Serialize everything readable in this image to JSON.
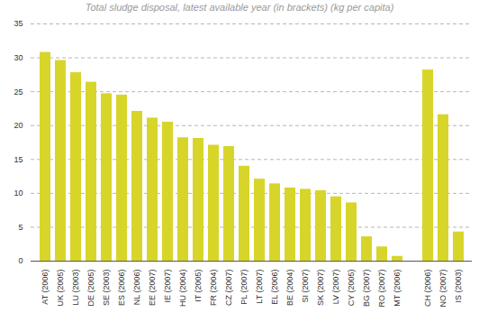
{
  "chart_data": {
    "type": "bar",
    "title": "Total sludge disposal, latest available year (in brackets) (kg per capita)",
    "categories": [
      "AT (2006)",
      "UK (2005)",
      "LU (2003)",
      "DE (2005)",
      "SE (2003)",
      "ES (2006)",
      "NL (2006)",
      "EE (2007)",
      "IE (2007)",
      "HU (2004)",
      "IT (2005)",
      "FR (2004)",
      "CZ (2007)",
      "PL (2007)",
      "LT (2007)",
      "EL (2006)",
      "BE (2004)",
      "SI (2007)",
      "SK (2007)",
      "LV (2007)",
      "CY (2005)",
      "BG (2007)",
      "RO (2007)",
      "MT (2006)",
      null,
      "CH (2006)",
      "NO (2007)",
      "IS (2003)"
    ],
    "values": [
      30.8,
      29.6,
      27.8,
      26.4,
      24.7,
      24.5,
      22.1,
      21.1,
      20.5,
      18.2,
      18.1,
      17.1,
      16.9,
      14.0,
      12.1,
      11.4,
      10.8,
      10.6,
      10.4,
      9.5,
      8.6,
      3.6,
      2.1,
      0.7,
      null,
      28.2,
      21.6,
      4.3
    ],
    "color": "#d8d52a",
    "ylim": [
      0,
      35
    ],
    "yticks": [
      0,
      5,
      10,
      15,
      20,
      25,
      30,
      35
    ],
    "grid": true
  }
}
